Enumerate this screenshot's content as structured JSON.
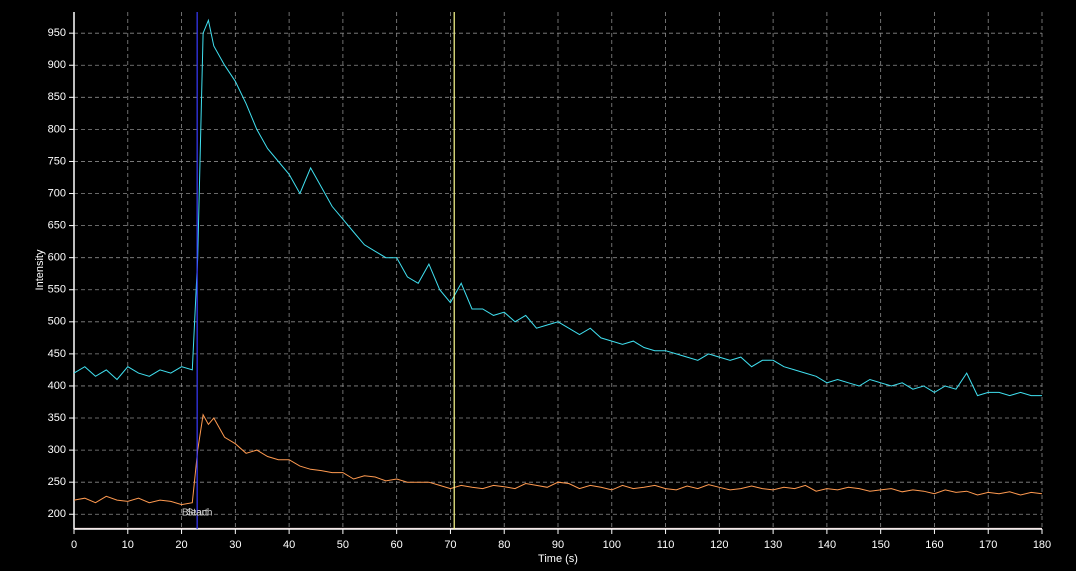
{
  "chart_data": {
    "type": "line",
    "xlabel": "Time (s)",
    "ylabel": "Intensity",
    "x": [
      0,
      2,
      4,
      6,
      8,
      10,
      12,
      14,
      16,
      18,
      20,
      22,
      23,
      24,
      25,
      26,
      28,
      30,
      32,
      34,
      36,
      38,
      40,
      42,
      44,
      46,
      48,
      50,
      52,
      54,
      56,
      58,
      60,
      62,
      64,
      66,
      68,
      70,
      72,
      74,
      76,
      78,
      80,
      82,
      84,
      86,
      88,
      90,
      92,
      94,
      96,
      98,
      100,
      102,
      104,
      106,
      108,
      110,
      112,
      114,
      116,
      118,
      120,
      122,
      124,
      126,
      128,
      130,
      132,
      134,
      136,
      138,
      140,
      142,
      144,
      146,
      148,
      150,
      152,
      154,
      156,
      158,
      160,
      162,
      164,
      166,
      168,
      170,
      172,
      174,
      176,
      178,
      180
    ],
    "series": [
      {
        "color": "#40e0f0",
        "values": [
          420,
          430,
          415,
          425,
          410,
          430,
          420,
          415,
          425,
          420,
          430,
          425,
          600,
          950,
          970,
          930,
          900,
          875,
          840,
          800,
          770,
          750,
          730,
          700,
          740,
          710,
          680,
          660,
          640,
          620,
          610,
          600,
          600,
          570,
          560,
          590,
          550,
          530,
          560,
          520,
          520,
          510,
          515,
          500,
          510,
          490,
          495,
          500,
          490,
          480,
          490,
          475,
          470,
          465,
          470,
          460,
          455,
          455,
          450,
          445,
          440,
          450,
          445,
          440,
          445,
          430,
          440,
          440,
          430,
          425,
          420,
          415,
          405,
          410,
          405,
          400,
          410,
          405,
          400,
          405,
          395,
          400,
          390,
          400,
          395,
          420,
          385,
          390,
          390,
          385,
          390,
          385,
          385
        ]
      },
      {
        "color": "#ff9a50",
        "values": [
          222,
          225,
          218,
          228,
          222,
          220,
          225,
          218,
          222,
          220,
          215,
          218,
          300,
          355,
          340,
          350,
          320,
          310,
          295,
          300,
          290,
          285,
          285,
          275,
          270,
          268,
          265,
          265,
          255,
          260,
          258,
          252,
          255,
          250,
          250,
          250,
          245,
          240,
          245,
          242,
          240,
          245,
          243,
          240,
          248,
          245,
          242,
          250,
          248,
          240,
          245,
          242,
          238,
          245,
          240,
          242,
          245,
          240,
          238,
          244,
          240,
          246,
          242,
          238,
          240,
          244,
          240,
          238,
          242,
          240,
          245,
          236,
          240,
          238,
          242,
          240,
          236,
          238,
          240,
          235,
          238,
          236,
          232,
          238,
          234,
          236,
          230,
          234,
          232,
          235,
          230,
          234,
          232
        ]
      },
      {
        "color": "#f4e4e4",
        "values": [
          178,
          178,
          178,
          178,
          178,
          178,
          178,
          178,
          178,
          178,
          178,
          178,
          178,
          178,
          178,
          178,
          178,
          178,
          178,
          178,
          178,
          178,
          178,
          178,
          178,
          178,
          178,
          178,
          178,
          178,
          178,
          178,
          178,
          178,
          178,
          178,
          178,
          178,
          178,
          178,
          178,
          178,
          178,
          178,
          178,
          178,
          178,
          178,
          178,
          178,
          178,
          178,
          178,
          178,
          178,
          178,
          178,
          178,
          178,
          178,
          178,
          178,
          178,
          178,
          178,
          178,
          178,
          178,
          178,
          178,
          178,
          178,
          178,
          178,
          178,
          178,
          178,
          178,
          178,
          178,
          178,
          178,
          178,
          178,
          178,
          178,
          178,
          178,
          178,
          178,
          178,
          178,
          178
        ]
      }
    ],
    "vlines": [
      {
        "x": 22.9,
        "color": "#3a3aff"
      },
      {
        "x": 70.7,
        "color": "#ffff90"
      }
    ],
    "annotations": [
      {
        "text": "Bleach",
        "x": 22.9
      },
      {
        "text": "Start",
        "x": 22.9
      }
    ],
    "xlim": [
      0,
      180
    ],
    "xticks": [
      0,
      10,
      20,
      30,
      40,
      50,
      60,
      70,
      80,
      90,
      100,
      110,
      120,
      130,
      140,
      150,
      160,
      170,
      180
    ],
    "ylim": [
      177,
      983
    ],
    "yticks": [
      200,
      250,
      300,
      350,
      400,
      450,
      500,
      550,
      600,
      650,
      700,
      750,
      800,
      850,
      900,
      950
    ],
    "grid": true
  }
}
